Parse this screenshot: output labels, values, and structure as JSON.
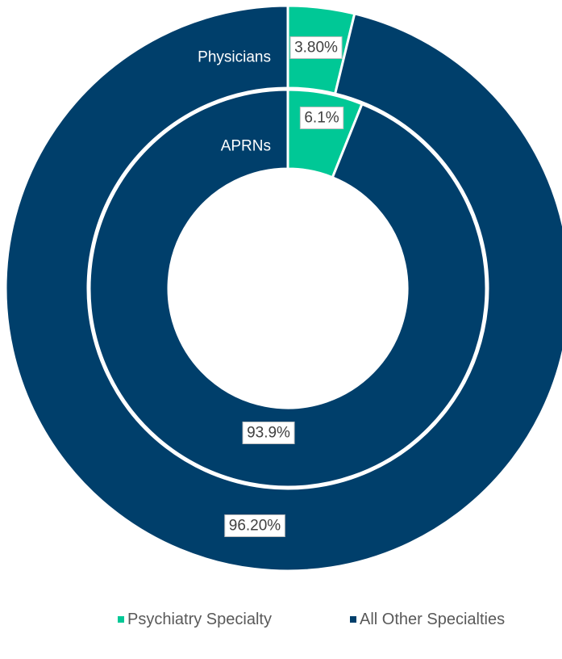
{
  "chart_data": {
    "type": "donut",
    "title": "",
    "legend_position": "bottom",
    "categories": [
      "Psychiatry Specialty",
      "All Other Specialties"
    ],
    "colors": {
      "Psychiatry Specialty": "#00c896",
      "All Other Specialties": "#003f6b"
    },
    "series": [
      {
        "name": "Physicians",
        "ring": "outer",
        "values": [
          3.8,
          96.2
        ],
        "labels": [
          "3.80%",
          "96.20%"
        ]
      },
      {
        "name": "APRNs",
        "ring": "inner",
        "values": [
          6.1,
          93.9
        ],
        "labels": [
          "6.1%",
          "93.9%"
        ]
      }
    ]
  }
}
